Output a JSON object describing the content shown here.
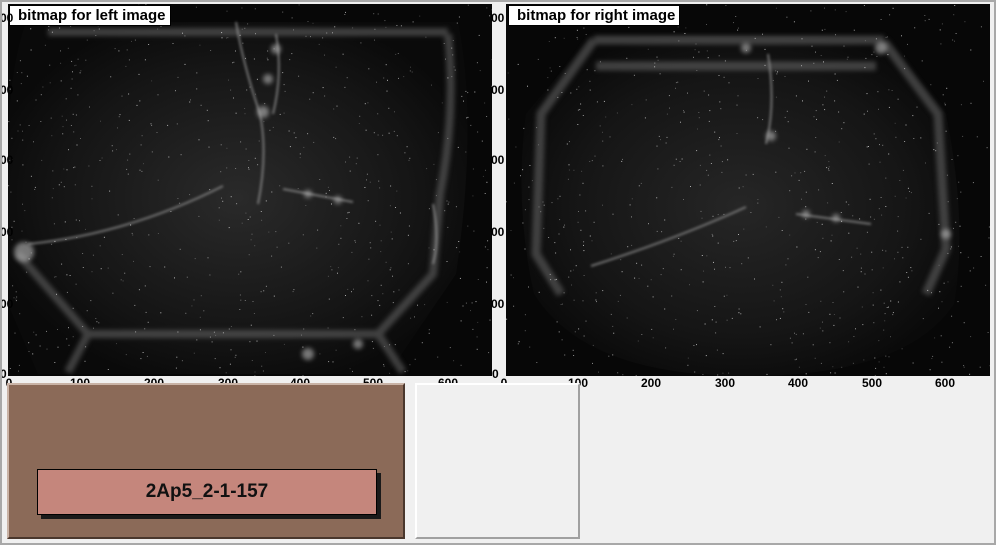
{
  "left_panel": {
    "title": "bitmap for left image",
    "x_ticks": [
      "0",
      "100",
      "200",
      "300",
      "400",
      "500",
      "600"
    ],
    "y_ticks": [
      "00",
      "00",
      "00",
      "00",
      "00",
      "0"
    ]
  },
  "right_panel": {
    "title": "bitmap for right image",
    "x_ticks": [
      "0",
      "100",
      "200",
      "300",
      "400",
      "500",
      "600"
    ],
    "y_ticks": [
      "00",
      "00",
      "00",
      "00",
      "00",
      "0"
    ]
  },
  "status": {
    "run_label": "2Ap5_2-1-157"
  },
  "colors": {
    "plot_background": "#070707",
    "label_brown": "#8b6a58",
    "label_button": "#c5867c",
    "canvas_background": "#f0f0f0"
  }
}
